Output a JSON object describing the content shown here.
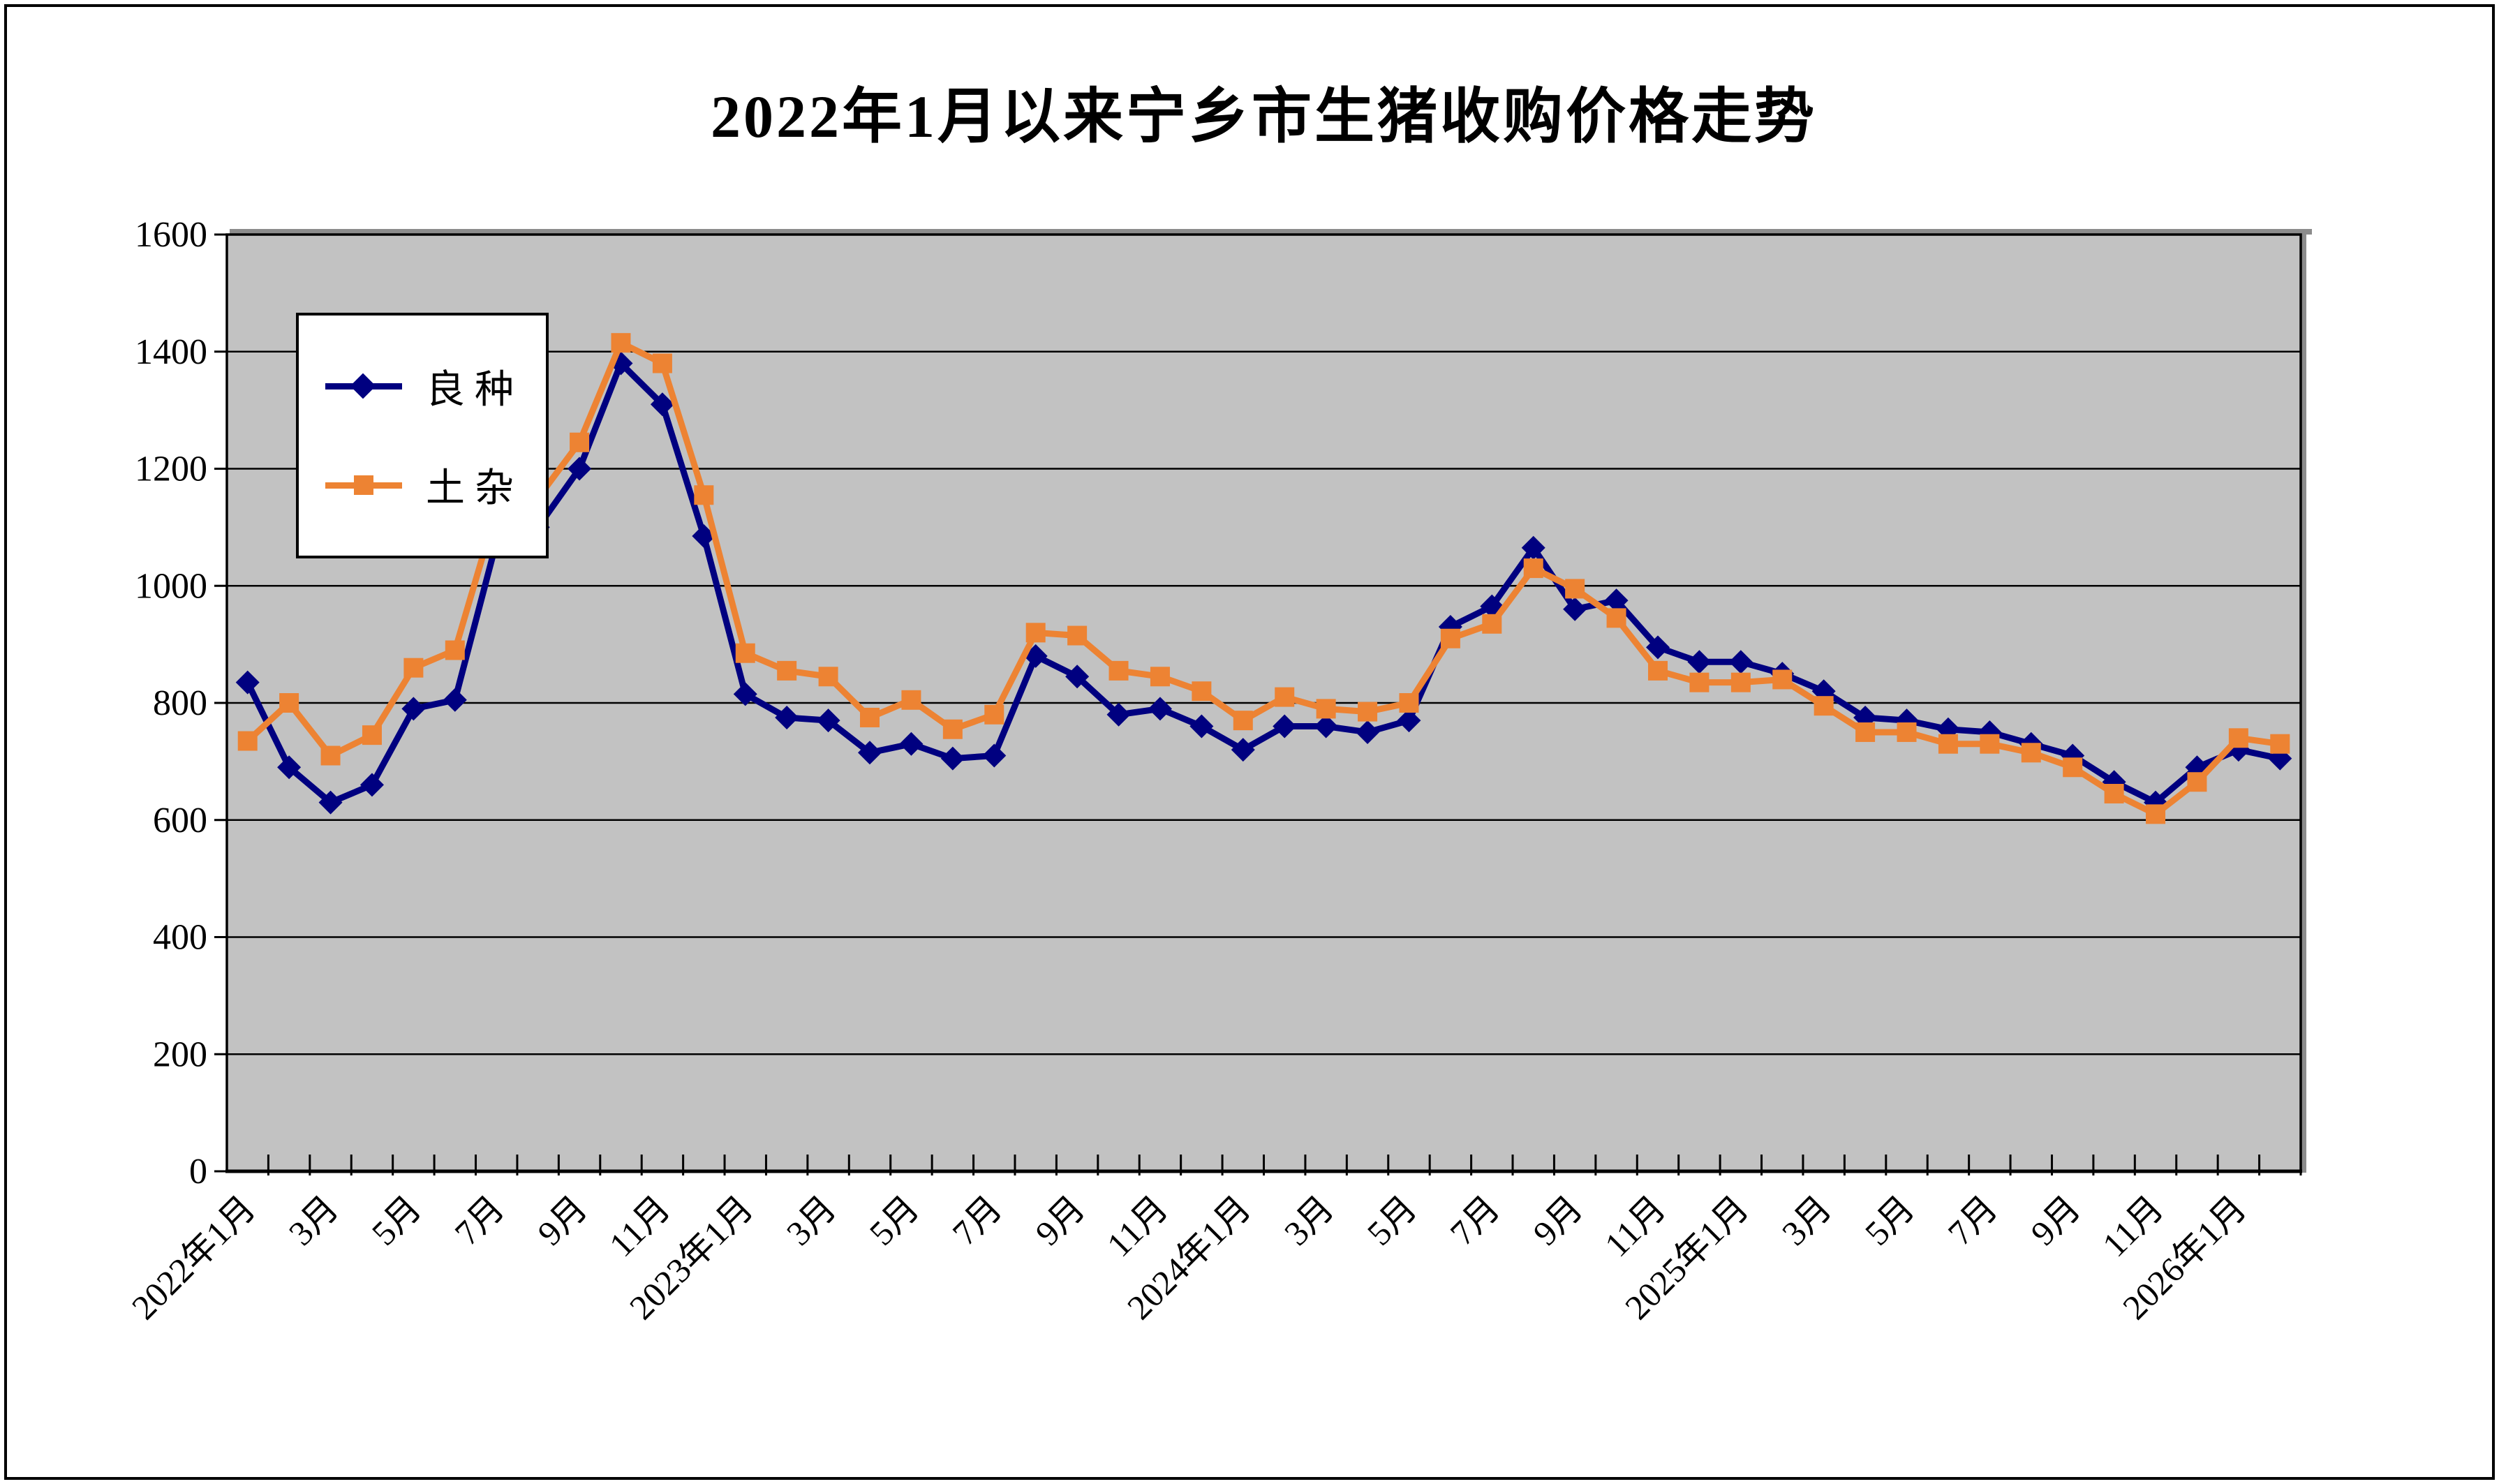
{
  "title": "2022年1月以来宁乡市生猪收购价格走势",
  "chart_data": {
    "type": "line",
    "title": "2022年1月以来宁乡市生猪收购价格走势",
    "xlabel": "",
    "ylabel": "",
    "ylim": [
      0,
      1600
    ],
    "y_ticks": [
      0,
      200,
      400,
      600,
      800,
      1000,
      1200,
      1400,
      1600
    ],
    "grid": true,
    "plot_bg_color": "#C2C2C2",
    "gridline_color": "#000000",
    "legend_position": "inner-left-top",
    "x_tick_labels": [
      "2022年1月",
      "3月",
      "5月",
      "7月",
      "9月",
      "11月",
      "2023年1月",
      "3月",
      "5月",
      "7月",
      "9月",
      "11月",
      "2024年1月",
      "3月",
      "5月",
      "7月",
      "9月",
      "11月",
      "2025年1月",
      "3月",
      "5月",
      "7月",
      "9月",
      "11月",
      "2026年1月"
    ],
    "categories": [
      "2022年1月",
      "2022年2月",
      "2022年3月",
      "2022年4月",
      "2022年5月",
      "2022年6月",
      "2022年7月",
      "2022年8月",
      "2022年9月",
      "2022年10月",
      "2022年11月",
      "2022年12月",
      "2023年1月",
      "2023年2月",
      "2023年3月",
      "2023年4月",
      "2023年5月",
      "2023年6月",
      "2023年7月",
      "2023年8月",
      "2023年9月",
      "2023年10月",
      "2023年11月",
      "2023年12月",
      "2024年1月",
      "2024年2月",
      "2024年3月",
      "2024年4月",
      "2024年5月",
      "2024年6月",
      "2024年7月",
      "2024年8月",
      "2024年9月",
      "2024年10月",
      "2024年11月",
      "2024年12月",
      "2025年1月",
      "2025年2月",
      "2025年3月",
      "2025年4月",
      "2025年5月",
      "2025年6月",
      "2025年7月",
      "2025年8月",
      "2025年9月",
      "2025年10月",
      "2025年11月",
      "2025年12月",
      "2026年1月",
      "2026年2月"
    ],
    "series": [
      {
        "name": "良种",
        "color": "#000080",
        "marker": "diamond",
        "values": [
          835,
          690,
          630,
          660,
          790,
          805,
          1075,
          1100,
          1200,
          1380,
          1310,
          1085,
          815,
          775,
          770,
          715,
          730,
          705,
          710,
          880,
          845,
          780,
          790,
          760,
          720,
          760,
          760,
          750,
          770,
          930,
          965,
          1065,
          960,
          975,
          895,
          870,
          870,
          850,
          820,
          775,
          770,
          755,
          750,
          730,
          710,
          665,
          630,
          690,
          720,
          705
        ]
      },
      {
        "name": "土杂",
        "color": "#ED8333",
        "marker": "square",
        "values": [
          735,
          800,
          710,
          745,
          860,
          890,
          1130,
          1150,
          1245,
          1415,
          1380,
          1155,
          885,
          855,
          845,
          775,
          805,
          755,
          780,
          920,
          915,
          855,
          845,
          820,
          770,
          810,
          790,
          785,
          800,
          910,
          935,
          1030,
          995,
          945,
          855,
          835,
          835,
          840,
          795,
          750,
          750,
          730,
          730,
          715,
          690,
          645,
          610,
          665,
          740,
          730
        ]
      }
    ]
  }
}
